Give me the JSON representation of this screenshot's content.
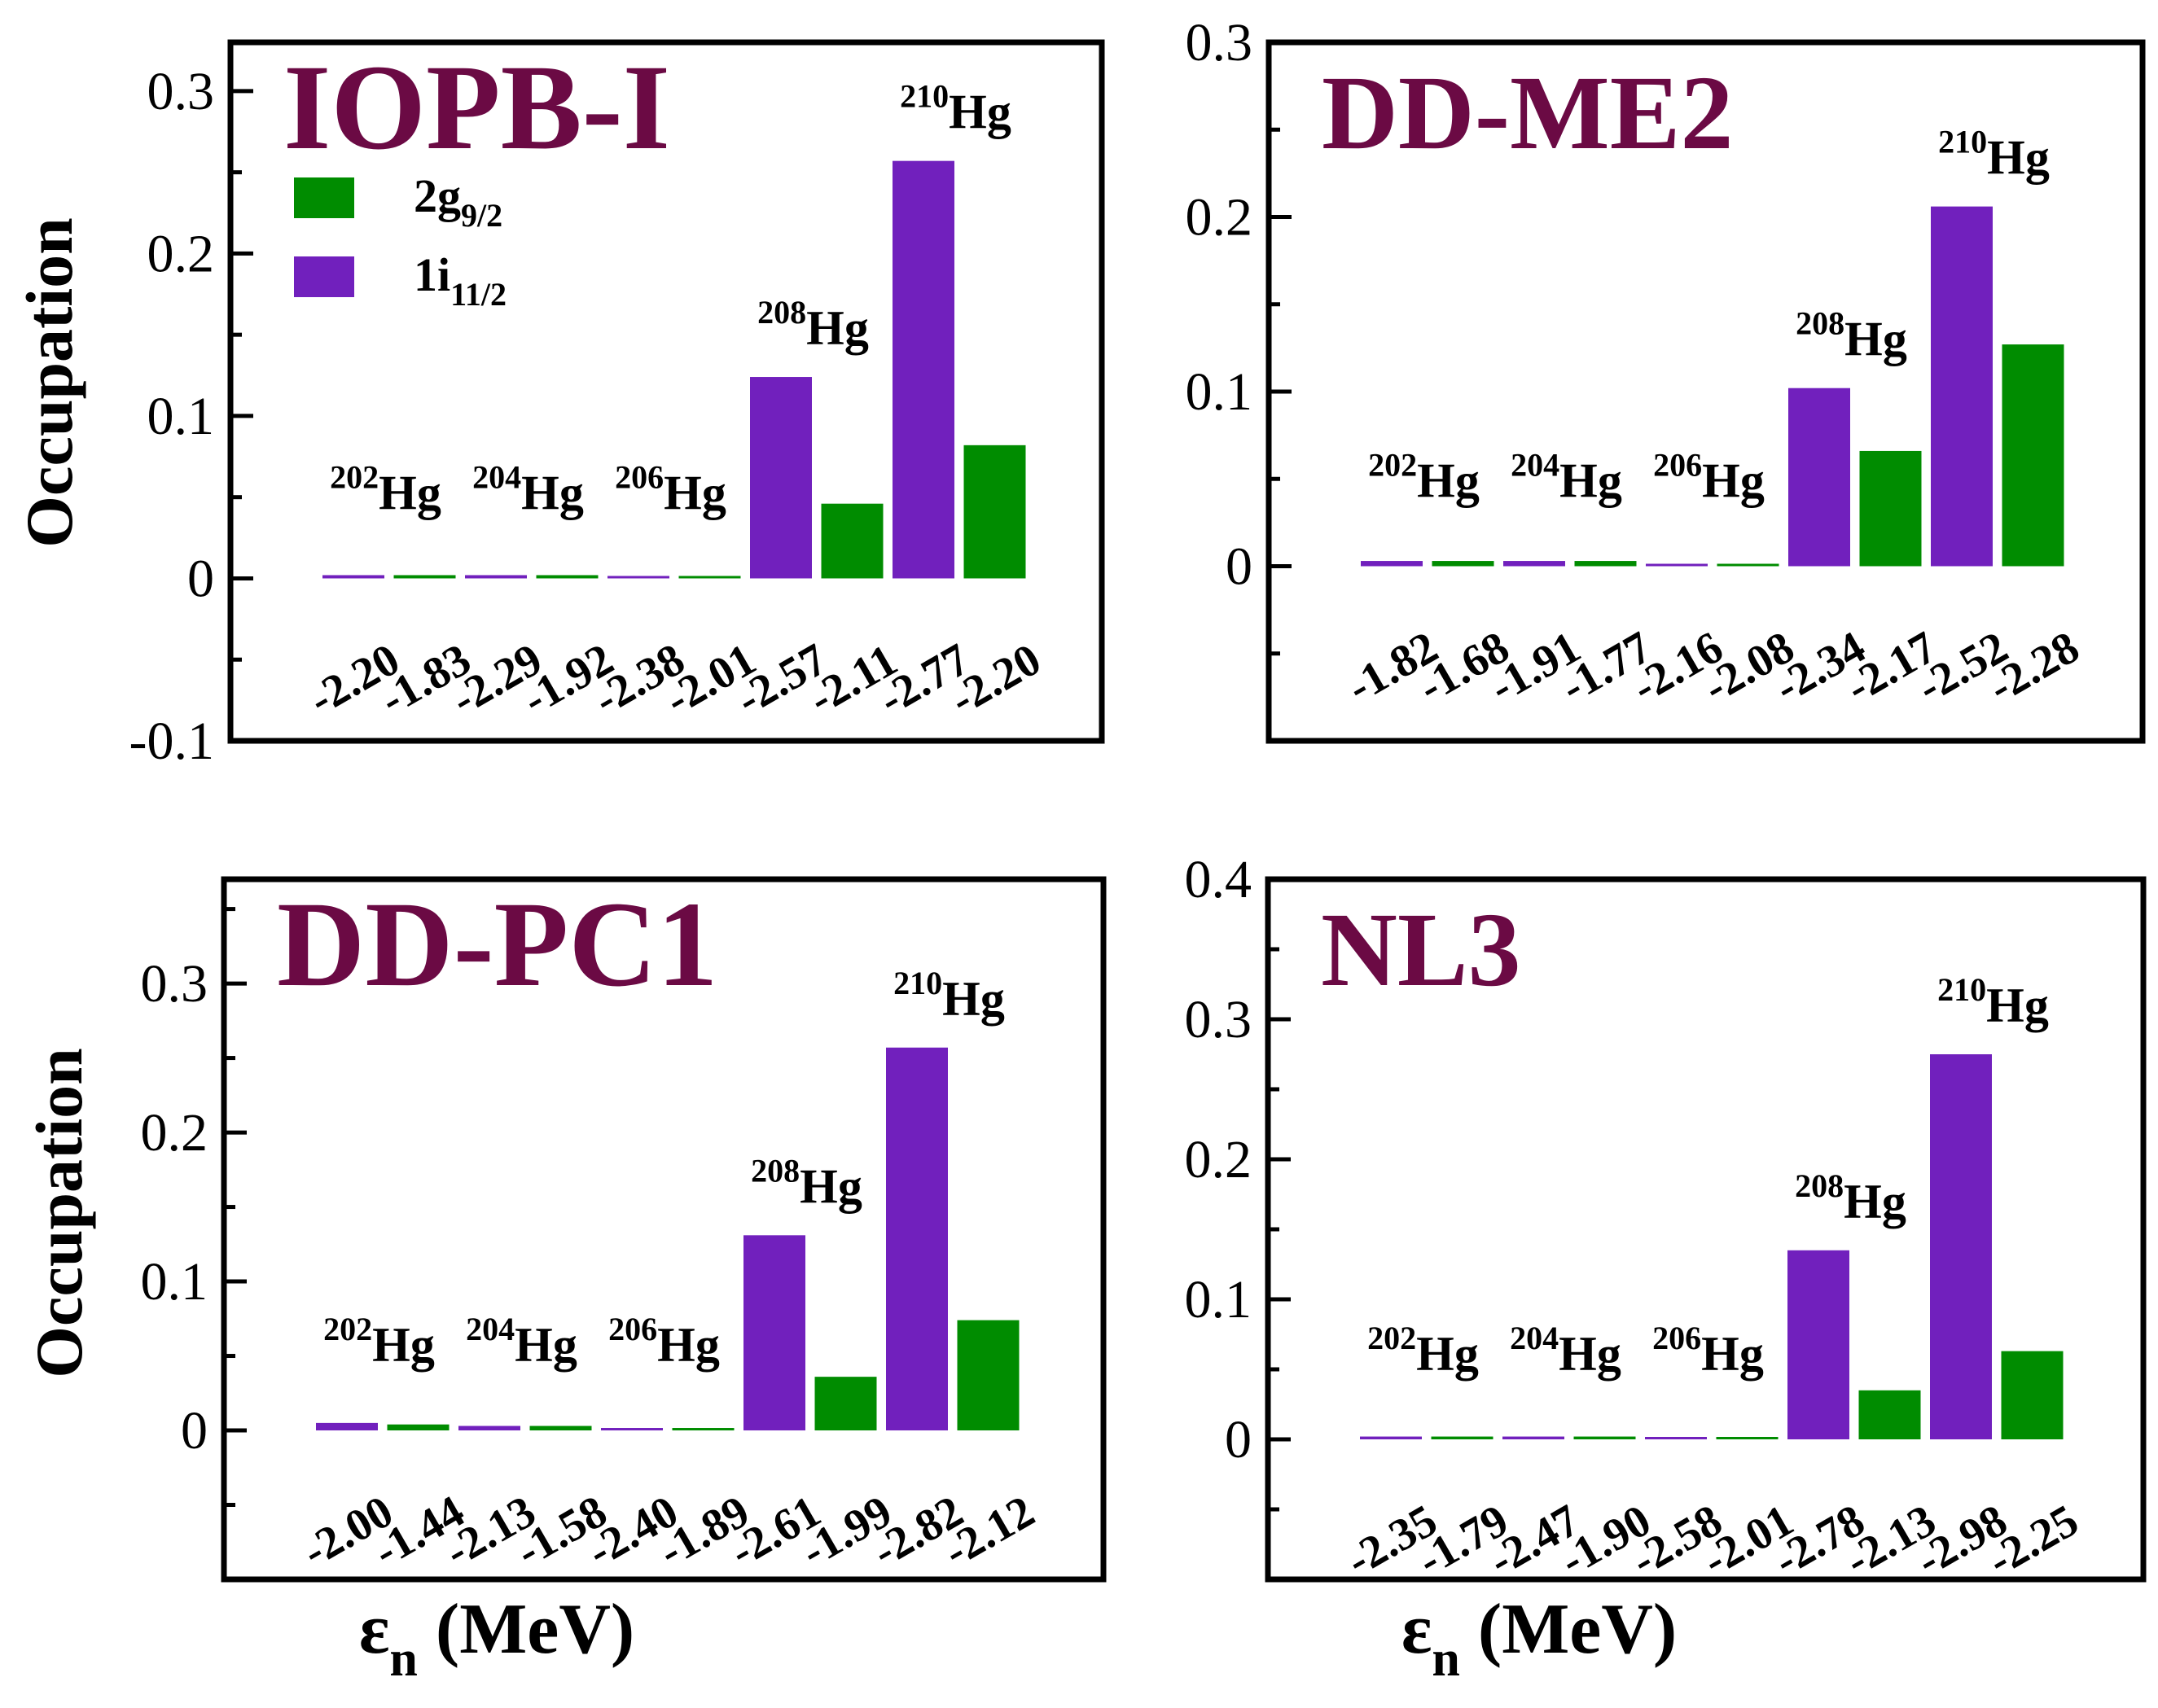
{
  "colors": {
    "g92": "#008c00",
    "i112": "#7120bd",
    "title": "#6b0a44",
    "axis": "#000000"
  },
  "legend": {
    "g92": {
      "main": "2g",
      "sub": "9/2"
    },
    "i112": {
      "main": "1i",
      "sub": "11/2"
    }
  },
  "axes": {
    "ylabel": "Occupation",
    "xlabel_main": "ε",
    "xlabel_sub": "n",
    "xlabel_unit": " (MeV)"
  },
  "chart_data": [
    {
      "type": "bar",
      "title": "IOPB-I",
      "ylim": [
        -0.1,
        0.33
      ],
      "yticks": [
        -0.1,
        0,
        0.1,
        0.2,
        0.3
      ],
      "ytick_labels": [
        "-0.1",
        "0",
        "0.1",
        "0.2",
        "0.3"
      ],
      "show_legend": true,
      "categories": [
        "-2.20",
        "-1.83",
        "-2.29",
        "-1.92",
        "-2.38",
        "-2.01",
        "-2.57",
        "-2.11",
        "-2.77",
        "-2.20"
      ],
      "states": [
        "i112",
        "g92",
        "i112",
        "g92",
        "i112",
        "g92",
        "i112",
        "g92",
        "i112",
        "g92"
      ],
      "values": [
        0.002,
        0.002,
        0.002,
        0.002,
        0.001,
        0.001,
        0.124,
        0.046,
        0.257,
        0.082
      ],
      "nuclei": [
        {
          "mass": "202",
          "el": "Hg"
        },
        {
          "mass": "204",
          "el": "Hg"
        },
        {
          "mass": "206",
          "el": "Hg"
        },
        {
          "mass": "208",
          "el": "Hg"
        },
        {
          "mass": "210",
          "el": "Hg"
        }
      ]
    },
    {
      "type": "bar",
      "title": "DD-ME2",
      "ylim": [
        -0.1,
        0.3
      ],
      "yticks": [
        0,
        0.1,
        0.2,
        0.3
      ],
      "ytick_labels": [
        "0",
        "0.1",
        "0.2",
        "0.3"
      ],
      "show_legend": false,
      "categories": [
        "-1.82",
        "-1.68",
        "-1.91",
        "-1.77",
        "-2.16",
        "-2.08",
        "-2.34",
        "-2.17",
        "-2.52",
        "-2.28"
      ],
      "states": [
        "i112",
        "g92",
        "i112",
        "g92",
        "i112",
        "g92",
        "i112",
        "g92",
        "i112",
        "g92"
      ],
      "values": [
        0.003,
        0.003,
        0.003,
        0.003,
        0.001,
        0.001,
        0.102,
        0.066,
        0.206,
        0.127
      ],
      "nuclei": [
        {
          "mass": "202",
          "el": "Hg"
        },
        {
          "mass": "204",
          "el": "Hg"
        },
        {
          "mass": "206",
          "el": "Hg"
        },
        {
          "mass": "208",
          "el": "Hg"
        },
        {
          "mass": "210",
          "el": "Hg"
        }
      ]
    },
    {
      "type": "bar",
      "title": "DD-PC1",
      "ylim": [
        -0.1,
        0.37
      ],
      "yticks": [
        0,
        0.1,
        0.2,
        0.3
      ],
      "ytick_labels": [
        "0",
        "0.1",
        "0.2",
        "0.3"
      ],
      "show_legend": false,
      "categories": [
        "-2.00",
        "-1.44",
        "-2.13",
        "-1.58",
        "-2.40",
        "-1.89",
        "-2.61",
        "-1.99",
        "-2.82",
        "-2.12"
      ],
      "states": [
        "i112",
        "g92",
        "i112",
        "g92",
        "i112",
        "g92",
        "i112",
        "g92",
        "i112",
        "g92"
      ],
      "values": [
        0.005,
        0.004,
        0.003,
        0.003,
        0.001,
        0.001,
        0.131,
        0.036,
        0.257,
        0.074
      ],
      "nuclei": [
        {
          "mass": "202",
          "el": "Hg"
        },
        {
          "mass": "204",
          "el": "Hg"
        },
        {
          "mass": "206",
          "el": "Hg"
        },
        {
          "mass": "208",
          "el": "Hg"
        },
        {
          "mass": "210",
          "el": "Hg"
        }
      ]
    },
    {
      "type": "bar",
      "title": "NL3",
      "ylim": [
        -0.1,
        0.4
      ],
      "yticks": [
        0,
        0.1,
        0.2,
        0.3,
        0.4
      ],
      "ytick_labels": [
        "0",
        "0.1",
        "0.2",
        "0.3",
        "0.4"
      ],
      "show_legend": false,
      "categories": [
        "-2.35",
        "-1.79",
        "-2.47",
        "-1.90",
        "-2.58",
        "-2.01",
        "-2.78",
        "-2.13",
        "-2.98",
        "-2.25"
      ],
      "states": [
        "i112",
        "g92",
        "i112",
        "g92",
        "i112",
        "g92",
        "i112",
        "g92",
        "i112",
        "g92"
      ],
      "values": [
        0.002,
        0.002,
        0.002,
        0.002,
        0.001,
        0.001,
        0.135,
        0.035,
        0.275,
        0.063
      ],
      "nuclei": [
        {
          "mass": "202",
          "el": "Hg"
        },
        {
          "mass": "204",
          "el": "Hg"
        },
        {
          "mass": "206",
          "el": "Hg"
        },
        {
          "mass": "208",
          "el": "Hg"
        },
        {
          "mass": "210",
          "el": "Hg"
        }
      ]
    }
  ]
}
